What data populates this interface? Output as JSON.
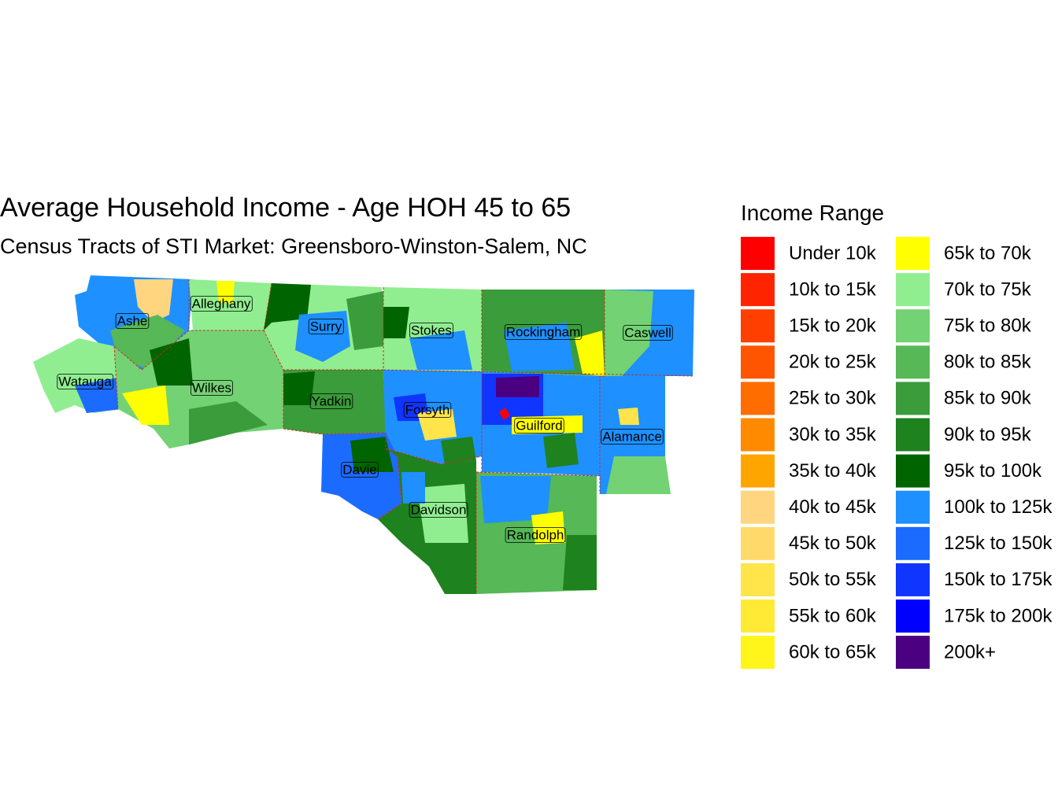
{
  "title": "Average Household Income - Age HOH 45 to 65",
  "subtitle": "Census Tracts of STI Market: Greensboro-Winston-Salem, NC",
  "legend": {
    "title": "Income Range",
    "items": [
      {
        "label": "Under 10k",
        "color": "#FF0000"
      },
      {
        "label": "10k to 15k",
        "color": "#FF2400"
      },
      {
        "label": "15k to 20k",
        "color": "#FF3F00"
      },
      {
        "label": "20k to 25k",
        "color": "#FF5500"
      },
      {
        "label": "25k to 30k",
        "color": "#FF6D00"
      },
      {
        "label": "30k to 35k",
        "color": "#FF8A00"
      },
      {
        "label": "35k to 40k",
        "color": "#FFA500"
      },
      {
        "label": "40k to 45k",
        "color": "#FFD580"
      },
      {
        "label": "45k to 50k",
        "color": "#FFDA6B"
      },
      {
        "label": "50k to 55k",
        "color": "#FFE44A"
      },
      {
        "label": "55k to 60k",
        "color": "#FFEA35"
      },
      {
        "label": "60k to 65k",
        "color": "#FFF51A"
      },
      {
        "label": "65k to 70k",
        "color": "#FFFF00"
      },
      {
        "label": "70k to 75k",
        "color": "#90EE90"
      },
      {
        "label": "75k to 80k",
        "color": "#73D273"
      },
      {
        "label": "80k to 85k",
        "color": "#56B856"
      },
      {
        "label": "85k to 90k",
        "color": "#3A9C3A"
      },
      {
        "label": "90k to 95k",
        "color": "#1E821E"
      },
      {
        "label": "95k to 100k",
        "color": "#006400"
      },
      {
        "label": "100k to 125k",
        "color": "#1E90FF"
      },
      {
        "label": "125k to 150k",
        "color": "#1C6BFF"
      },
      {
        "label": "150k to 175k",
        "color": "#1035FF"
      },
      {
        "label": "175k to 200k",
        "color": "#0000FF"
      },
      {
        "label": "200k+",
        "color": "#4B0082"
      }
    ]
  },
  "counties": [
    {
      "name": "Ashe"
    },
    {
      "name": "Alleghany"
    },
    {
      "name": "Surry"
    },
    {
      "name": "Stokes"
    },
    {
      "name": "Rockingham"
    },
    {
      "name": "Caswell"
    },
    {
      "name": "Watauga"
    },
    {
      "name": "Wilkes"
    },
    {
      "name": "Yadkin"
    },
    {
      "name": "Forsyth"
    },
    {
      "name": "Guilford"
    },
    {
      "name": "Alamance"
    },
    {
      "name": "Davie"
    },
    {
      "name": "Davidson"
    },
    {
      "name": "Randolph"
    }
  ]
}
